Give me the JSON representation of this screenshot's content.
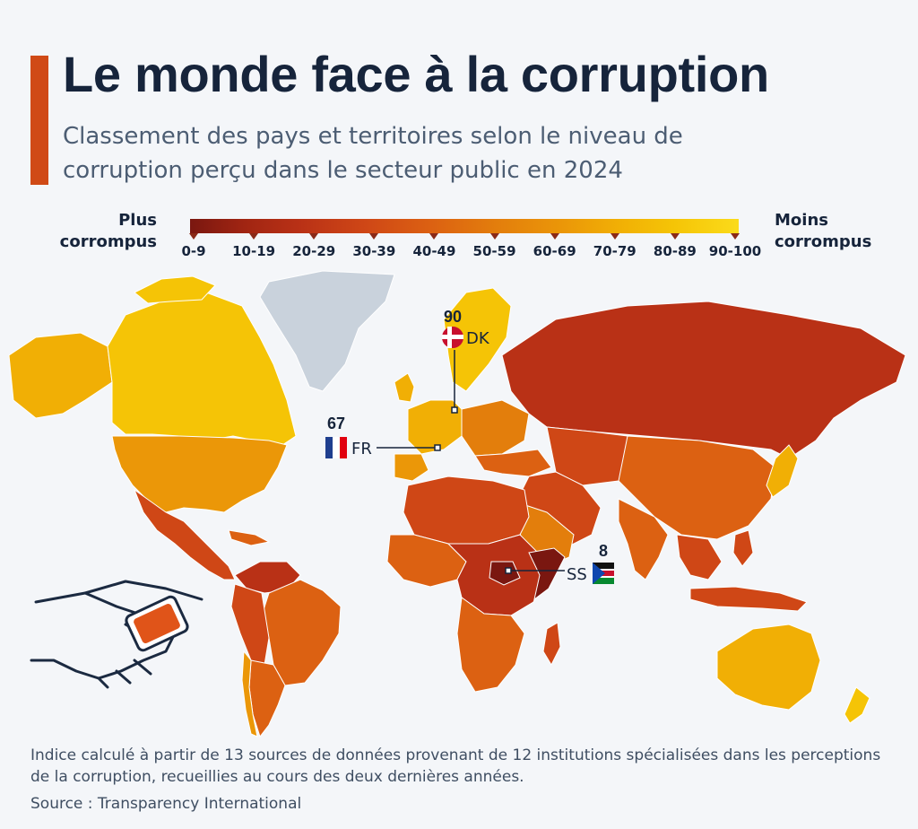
{
  "header": {
    "title": "Le monde face à la corruption",
    "subtitle": "Classement des pays et territoires selon le niveau de corruption perçu dans le secteur public en 2024"
  },
  "legend": {
    "left_label": [
      "Plus",
      "corrompus"
    ],
    "right_label": [
      "Moins",
      "corrompus"
    ],
    "bins": [
      "0-9",
      "10-19",
      "20-29",
      "30-39",
      "40-49",
      "50-59",
      "60-69",
      "70-79",
      "80-89",
      "90-100"
    ],
    "colors": [
      "#7a1710",
      "#a12512",
      "#b93116",
      "#cf4716",
      "#dc6112",
      "#e37e0c",
      "#eb9708",
      "#f1af05",
      "#f5c406",
      "#fbdb1a"
    ]
  },
  "callouts": {
    "dk": {
      "score": "90",
      "code": "DK"
    },
    "fr": {
      "score": "67",
      "code": "FR"
    },
    "ss": {
      "score": "8",
      "code": "SS"
    }
  },
  "map_colors": {
    "no_data": "#c9d2dc",
    "north_america": "#f1af05",
    "canada": "#f5c406",
    "russia": "#b93116",
    "australia": "#f1af05",
    "africa": "#cf4716"
  },
  "footnote": "Indice calculé à partir de 13 sources de données provenant de 12 institutions spécialisées dans les perceptions de la corruption, recueillies au cours des deux dernières années.",
  "source": "Source : Transparency International"
}
